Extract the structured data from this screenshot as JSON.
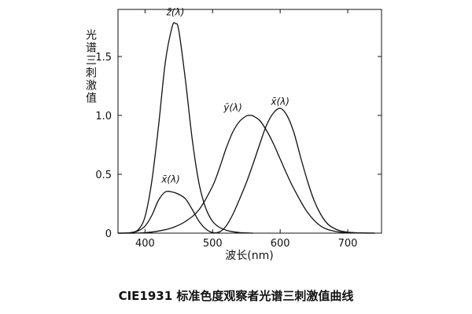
{
  "chart_data": {
    "type": "line",
    "title": "",
    "caption": "CIE1931 标准色度观察者光谱三刺激值曲线",
    "xlabel": "波长(nm)",
    "ylabel": "光谱三刺激值",
    "xlim": [
      360,
      750
    ],
    "ylim": [
      0,
      1.9
    ],
    "grid": false,
    "x_ticks": [
      400,
      500,
      600,
      700
    ],
    "y_ticks": [
      0,
      0.5,
      1.0,
      1.5
    ],
    "y_tick_labels": [
      "0",
      "0.5",
      "1.0",
      "1.5"
    ],
    "series": [
      {
        "name": "z̄(λ)",
        "label_at": [
          445,
          1.85
        ],
        "x": [
          360,
          370,
          380,
          390,
          400,
          410,
          420,
          430,
          440,
          445,
          450,
          460,
          470,
          480,
          490,
          500,
          510,
          520,
          530,
          540,
          550,
          560
        ],
        "values": [
          0,
          0.001,
          0.006,
          0.03,
          0.14,
          0.44,
          0.91,
          1.45,
          1.75,
          1.78,
          1.72,
          1.29,
          0.79,
          0.42,
          0.21,
          0.1,
          0.05,
          0.025,
          0.012,
          0.005,
          0.002,
          0
        ]
      },
      {
        "name": "ȳ(λ)",
        "label_at": [
          530,
          1.04
        ],
        "x": [
          360,
          380,
          400,
          420,
          440,
          460,
          480,
          500,
          510,
          520,
          530,
          540,
          550,
          555,
          560,
          570,
          580,
          590,
          600,
          610,
          620,
          640,
          660,
          680,
          700,
          720,
          740
        ],
        "values": [
          0,
          0.0001,
          0.004,
          0.018,
          0.045,
          0.1,
          0.2,
          0.4,
          0.55,
          0.72,
          0.86,
          0.95,
          0.995,
          1.0,
          0.995,
          0.955,
          0.87,
          0.76,
          0.63,
          0.5,
          0.38,
          0.18,
          0.06,
          0.017,
          0.004,
          0.001,
          0
        ]
      },
      {
        "name": "x̄(λ)",
        "label_at": [
          600,
          1.09
        ],
        "x": [
          360,
          370,
          380,
          390,
          400,
          410,
          420,
          430,
          440,
          450,
          460,
          470,
          480,
          490,
          500,
          510,
          520,
          530,
          540,
          550,
          560,
          570,
          580,
          590,
          600,
          610,
          620,
          630,
          640,
          650,
          660,
          670,
          680,
          690,
          700,
          710,
          720,
          730,
          740
        ],
        "values": [
          0,
          0.001,
          0.005,
          0.02,
          0.06,
          0.15,
          0.28,
          0.35,
          0.35,
          0.33,
          0.29,
          0.2,
          0.1,
          0.035,
          0.005,
          0.01,
          0.06,
          0.16,
          0.29,
          0.43,
          0.59,
          0.76,
          0.92,
          1.02,
          1.06,
          1.0,
          0.86,
          0.65,
          0.45,
          0.28,
          0.16,
          0.08,
          0.04,
          0.018,
          0.008,
          0.004,
          0.002,
          0.001,
          0
        ]
      },
      {
        "name": "x̄(λ)",
        "label_at": [
          438,
          0.43
        ],
        "hide_curve": true
      }
    ]
  }
}
